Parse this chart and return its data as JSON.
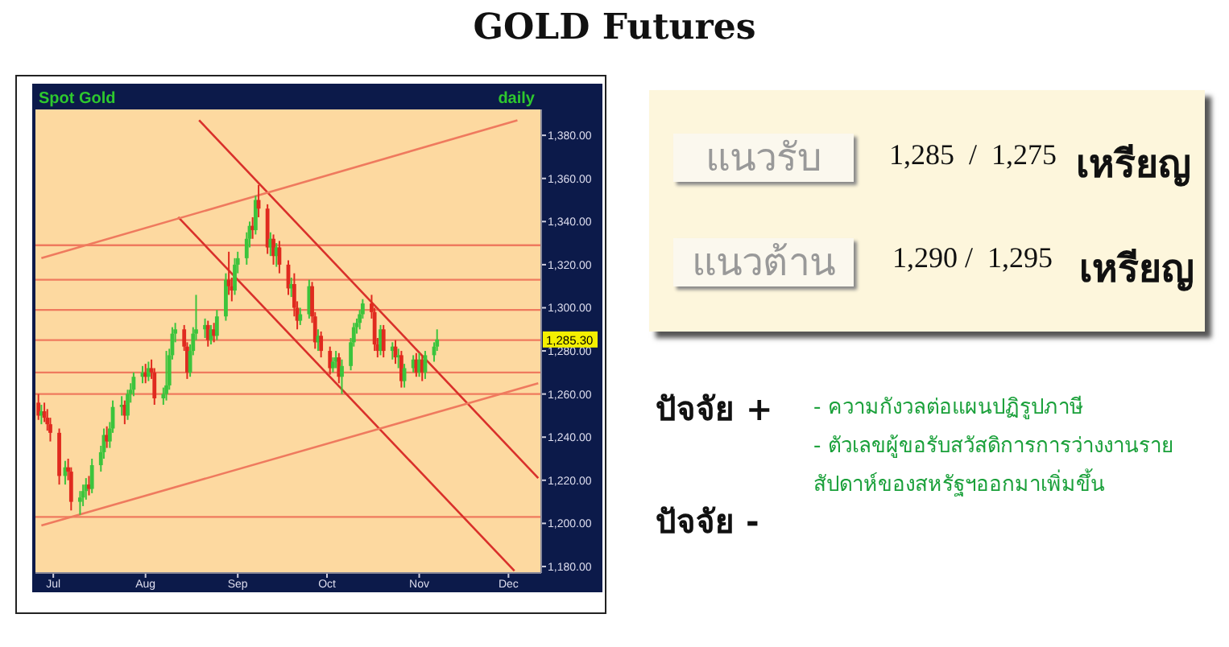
{
  "chart_data": [
    {
      "type": "candlestick",
      "title": "GOLD Futures",
      "annotations": [
        "Spot Gold",
        "daily",
        "1,285.30"
      ],
      "x": [
        "--06-26",
        "--06-27",
        "--06-28",
        "--06-29",
        "--06-30",
        "--07-03",
        "--07-05",
        "--07-06",
        "--07-07",
        "--07-10",
        "--07-11",
        "--07-12",
        "--07-13",
        "--07-14",
        "--07-17",
        "--07-18",
        "--07-19",
        "--07-20",
        "--07-21",
        "--07-24",
        "--07-25",
        "--07-26",
        "--07-27",
        "--07-28",
        "--07-31",
        "--08-01",
        "--08-02",
        "--08-03",
        "--08-04",
        "--08-07",
        "--08-08",
        "--08-09",
        "--08-10",
        "--08-11",
        "--08-14",
        "--08-15",
        "--08-16",
        "--08-17",
        "--08-18",
        "--08-21",
        "--08-22",
        "--08-23",
        "--08-24",
        "--08-25",
        "--08-28",
        "--08-29",
        "--08-30",
        "--08-31",
        "--09-01",
        "--09-04",
        "--09-05",
        "--09-06",
        "--09-07",
        "--09-08",
        "--09-11",
        "--09-12",
        "--09-13",
        "--09-14",
        "--09-15",
        "--09-18",
        "--09-19",
        "--09-20",
        "--09-21",
        "--09-22",
        "--09-25",
        "--09-26",
        "--09-27",
        "--09-28",
        "--09-29",
        "--10-02",
        "--10-03",
        "--10-04",
        "--10-05",
        "--10-06",
        "--10-09",
        "--10-10",
        "--10-11",
        "--10-12",
        "--10-13",
        "--10-16",
        "--10-17",
        "--10-18",
        "--10-19",
        "--10-20",
        "--10-23",
        "--10-24",
        "--10-25",
        "--10-26",
        "--10-27",
        "--10-30",
        "--10-31",
        "--11-01",
        "--11-02",
        "--11-03",
        "--11-06",
        "--11-07"
      ],
      "ohlc": [
        [
          1256,
          1260,
          1248,
          1250
        ],
        [
          1250,
          1255,
          1246,
          1252
        ],
        [
          1252,
          1256,
          1247,
          1249
        ],
        [
          1249,
          1253,
          1243,
          1246
        ],
        [
          1246,
          1249,
          1238,
          1242
        ],
        [
          1242,
          1244,
          1218,
          1222
        ],
        [
          1222,
          1229,
          1218,
          1226
        ],
        [
          1226,
          1230,
          1220,
          1224
        ],
        [
          1224,
          1226,
          1206,
          1210
        ],
        [
          1210,
          1215,
          1204,
          1212
        ],
        [
          1212,
          1218,
          1208,
          1215
        ],
        [
          1215,
          1221,
          1211,
          1218
        ],
        [
          1218,
          1222,
          1213,
          1216
        ],
        [
          1216,
          1230,
          1214,
          1227
        ],
        [
          1227,
          1236,
          1224,
          1233
        ],
        [
          1233,
          1244,
          1230,
          1241
        ],
        [
          1241,
          1245,
          1235,
          1238
        ],
        [
          1238,
          1247,
          1235,
          1244
        ],
        [
          1244,
          1257,
          1242,
          1254
        ],
        [
          1254,
          1259,
          1250,
          1255
        ],
        [
          1255,
          1257,
          1246,
          1250
        ],
        [
          1250,
          1262,
          1248,
          1260
        ],
        [
          1260,
          1265,
          1256,
          1262
        ],
        [
          1262,
          1270,
          1259,
          1268
        ],
        [
          1268,
          1273,
          1265,
          1270
        ],
        [
          1270,
          1274,
          1265,
          1268
        ],
        [
          1268,
          1275,
          1266,
          1272
        ],
        [
          1272,
          1276,
          1267,
          1270
        ],
        [
          1270,
          1272,
          1255,
          1258
        ],
        [
          1258,
          1263,
          1255,
          1260
        ],
        [
          1260,
          1280,
          1257,
          1264
        ],
        [
          1264,
          1281,
          1262,
          1278
        ],
        [
          1278,
          1291,
          1276,
          1288
        ],
        [
          1288,
          1293,
          1284,
          1290
        ],
        [
          1290,
          1292,
          1280,
          1282
        ],
        [
          1282,
          1284,
          1267,
          1270
        ],
        [
          1270,
          1283,
          1268,
          1280
        ],
        [
          1280,
          1291,
          1278,
          1288
        ],
        [
          1288,
          1306,
          1285,
          1290
        ],
        [
          1290,
          1295,
          1286,
          1292
        ],
        [
          1292,
          1294,
          1282,
          1285
        ],
        [
          1285,
          1292,
          1283,
          1290
        ],
        [
          1290,
          1293,
          1284,
          1287
        ],
        [
          1287,
          1299,
          1285,
          1296
        ],
        [
          1296,
          1316,
          1294,
          1313
        ],
        [
          1313,
          1326,
          1306,
          1310
        ],
        [
          1310,
          1314,
          1303,
          1308
        ],
        [
          1308,
          1323,
          1306,
          1320
        ],
        [
          1320,
          1326,
          1316,
          1323
        ],
        [
          1323,
          1335,
          1320,
          1332
        ],
        [
          1332,
          1340,
          1328,
          1338
        ],
        [
          1338,
          1342,
          1332,
          1336
        ],
        [
          1336,
          1352,
          1334,
          1350
        ],
        [
          1350,
          1357,
          1342,
          1346
        ],
        [
          1346,
          1348,
          1325,
          1328
        ],
        [
          1328,
          1335,
          1324,
          1332
        ],
        [
          1332,
          1334,
          1320,
          1324
        ],
        [
          1324,
          1330,
          1319,
          1328
        ],
        [
          1328,
          1331,
          1316,
          1320
        ],
        [
          1320,
          1322,
          1306,
          1309
        ],
        [
          1309,
          1314,
          1305,
          1311
        ],
        [
          1311,
          1316,
          1296,
          1300
        ],
        [
          1300,
          1303,
          1290,
          1294
        ],
        [
          1294,
          1300,
          1292,
          1297
        ],
        [
          1297,
          1313,
          1295,
          1310
        ],
        [
          1310,
          1312,
          1293,
          1296
        ],
        [
          1296,
          1298,
          1281,
          1284
        ],
        [
          1284,
          1290,
          1280,
          1287
        ],
        [
          1287,
          1289,
          1277,
          1280
        ],
        [
          1280,
          1282,
          1269,
          1272
        ],
        [
          1272,
          1277,
          1270,
          1275
        ],
        [
          1275,
          1280,
          1272,
          1277
        ],
        [
          1277,
          1279,
          1265,
          1268
        ],
        [
          1268,
          1276,
          1260,
          1273
        ],
        [
          1273,
          1286,
          1271,
          1284
        ],
        [
          1284,
          1293,
          1282,
          1291
        ],
        [
          1291,
          1295,
          1288,
          1293
        ],
        [
          1293,
          1299,
          1290,
          1297
        ],
        [
          1297,
          1304,
          1295,
          1302
        ],
        [
          1302,
          1306,
          1295,
          1298
        ],
        [
          1298,
          1300,
          1280,
          1283
        ],
        [
          1283,
          1286,
          1277,
          1280
        ],
        [
          1280,
          1292,
          1278,
          1290
        ],
        [
          1290,
          1292,
          1277,
          1280
        ],
        [
          1280,
          1284,
          1276,
          1282
        ],
        [
          1282,
          1285,
          1274,
          1277
        ],
        [
          1277,
          1281,
          1272,
          1278
        ],
        [
          1278,
          1280,
          1263,
          1266
        ],
        [
          1266,
          1274,
          1263,
          1272
        ],
        [
          1272,
          1278,
          1270,
          1276
        ],
        [
          1276,
          1279,
          1268,
          1270
        ],
        [
          1270,
          1279,
          1268,
          1276
        ],
        [
          1276,
          1278,
          1266,
          1270
        ],
        [
          1270,
          1280,
          1267,
          1278
        ],
        [
          1278,
          1284,
          1275,
          1282
        ],
        [
          1282,
          1290,
          1280,
          1285.3
        ]
      ],
      "series": [
        {
          "type": "line",
          "color": "#d9302b",
          "x": [
            "--08-19",
            "--12-11"
          ],
          "values": [
            1387,
            1221
          ]
        },
        {
          "type": "line",
          "color": "#d9302b",
          "x": [
            "--08-12",
            "--12-03"
          ],
          "values": [
            1342,
            1178
          ]
        },
        {
          "type": "line",
          "color": "#ef7a5e",
          "x": [
            "--06-27",
            "--12-04"
          ],
          "values": [
            1323,
            1387
          ]
        },
        {
          "type": "line",
          "color": "#ef7a5e",
          "x": [
            "--06-27",
            "--12-11"
          ],
          "values": [
            1199,
            1265
          ]
        }
      ],
      "ref_lines": [
        {
          "axis": "y",
          "value": 1329,
          "color": "#ef7a5e"
        },
        {
          "axis": "y",
          "value": 1313,
          "color": "#ef7a5e"
        },
        {
          "axis": "y",
          "value": 1299,
          "color": "#ef7a5e"
        },
        {
          "axis": "y",
          "value": 1285,
          "color": "#ef7a5e"
        },
        {
          "axis": "y",
          "value": 1270,
          "color": "#ef7a5e"
        },
        {
          "axis": "y",
          "value": 1260,
          "color": "#ef7a5e"
        },
        {
          "axis": "y",
          "value": 1203,
          "color": "#ef7a5e"
        }
      ],
      "xlim": [
        "--06-25",
        "--12-12"
      ],
      "xticks": [
        {
          "value": "--07-01",
          "label": "Jul"
        },
        {
          "value": "--08-01",
          "label": "Aug"
        },
        {
          "value": "--09-01",
          "label": "Sep"
        },
        {
          "value": "--10-01",
          "label": "Oct"
        },
        {
          "value": "--11-01",
          "label": "Nov"
        },
        {
          "value": "--12-01",
          "label": "Dec"
        }
      ],
      "ylim": [
        1177,
        1392
      ],
      "yticks": [
        {
          "value": 1180,
          "label": "1,180.00"
        },
        {
          "value": 1200,
          "label": "1,200.00"
        },
        {
          "value": 1220,
          "label": "1,220.00"
        },
        {
          "value": 1240,
          "label": "1,240.00"
        },
        {
          "value": 1260,
          "label": "1,260.00"
        },
        {
          "value": 1280,
          "label": "1,280.00"
        },
        {
          "value": 1300,
          "label": "1,300.00"
        },
        {
          "value": 1320,
          "label": "1,320.00"
        },
        {
          "value": 1340,
          "label": "1,340.00"
        },
        {
          "value": 1360,
          "label": "1,360.00"
        },
        {
          "value": 1380,
          "label": "1,380.00"
        }
      ]
    },
    {
      "type": "other",
      "annotations": [
        "แนวรับ",
        "1,285  /  1,275",
        "เหรียญ",
        "แนวต้าน",
        "1,290 /  1,295",
        "เหรียญ",
        "ปัจจัย +",
        "ปัจจัย -",
        "- ความกังวลต่อแผนปฏิรูปภาษี",
        "- ตัวเลขผู้ขอรับสวัสดิการการว่างงานรายสัปดาห์ของสหรัฐฯออกมาเพิ่มขึ้น"
      ]
    }
  ]
}
